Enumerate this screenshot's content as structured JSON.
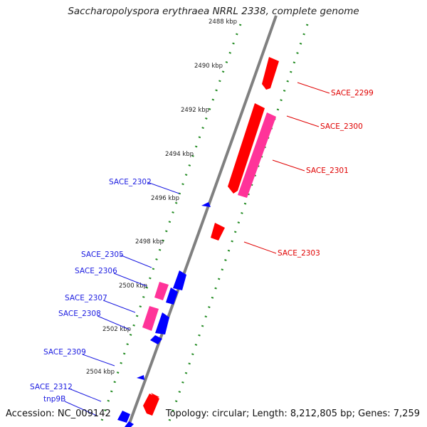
{
  "title": "Saccharopolyspora erythraea NRRL 2338, complete genome",
  "footer": {
    "accession": "Accession: NC_009142",
    "summary": "Topology: circular; Length: 8,212,805 bp; Genes: 7,259"
  },
  "colors": {
    "forward_cds": "#ff0000",
    "forward_pseudo": "#ff3399",
    "reverse_cds": "#0000ff",
    "reverse_pseudo": "#ff3399",
    "tick_dots": "#228b22",
    "backbone": "#808080"
  },
  "ticks": [
    "2488 kbp",
    "2490 kbp",
    "2492 kbp",
    "2494 kbp",
    "2496 kbp",
    "2498 kbp",
    "2500 kbp",
    "2502 kbp",
    "2504 kbp"
  ],
  "labels_right": [
    "SACE_2299",
    "SACE_2300",
    "SACE_2301",
    "SACE_2303"
  ],
  "labels_left": [
    "SACE_2302",
    "SACE_2305",
    "SACE_2306",
    "SACE_2307",
    "SACE_2308",
    "SACE_2309",
    "SACE_2312",
    "tnp9B"
  ]
}
